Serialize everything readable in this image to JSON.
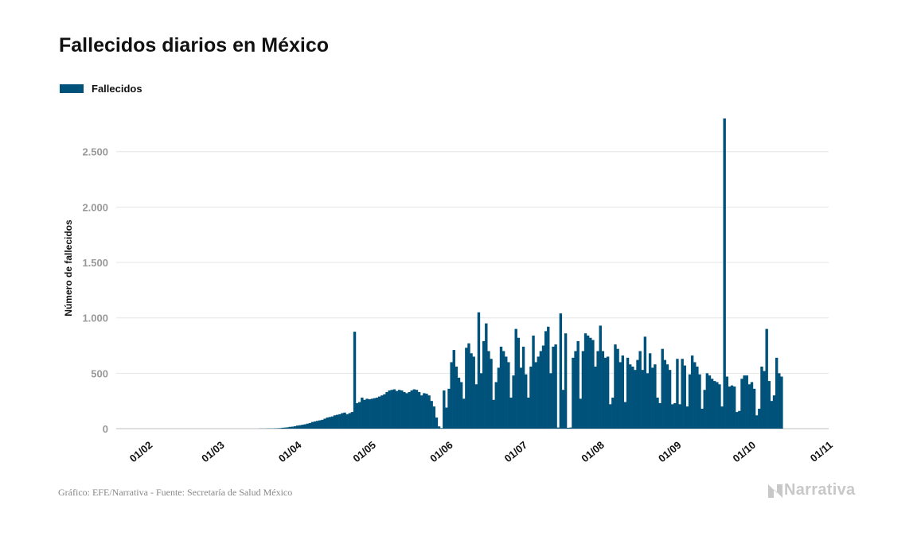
{
  "chart_data": {
    "type": "bar",
    "title": "Fallecidos diarios en México",
    "ylabel": "Número de fallecidos",
    "xlabel": "",
    "ylim": [
      0,
      2900
    ],
    "yticks": [
      0,
      500,
      1000,
      1500,
      2000,
      2500
    ],
    "ytick_labels": [
      "0",
      "500",
      "1.000",
      "1.500",
      "2.000",
      "2.500"
    ],
    "x_range": [
      "2020-01-20",
      "2020-11-02"
    ],
    "xticks": [
      "2020-02-01",
      "2020-03-01",
      "2020-04-01",
      "2020-05-01",
      "2020-06-01",
      "2020-07-01",
      "2020-08-01",
      "2020-09-01",
      "2020-10-01",
      "2020-11-01"
    ],
    "xtick_labels": [
      "01/02",
      "01/03",
      "01/04",
      "01/05",
      "01/06",
      "01/07",
      "01/08",
      "01/09",
      "01/10",
      "01/11"
    ],
    "grid": true,
    "legend_position": "top-left",
    "series": [
      {
        "name": "Fallecidos",
        "color": "#00527a",
        "start_date": "2020-03-18",
        "values": [
          1,
          1,
          1,
          2,
          2,
          2,
          3,
          4,
          5,
          8,
          10,
          12,
          16,
          18,
          22,
          28,
          31,
          35,
          39,
          45,
          50,
          60,
          65,
          70,
          75,
          80,
          90,
          100,
          105,
          110,
          120,
          125,
          130,
          140,
          145,
          130,
          140,
          150,
          875,
          230,
          240,
          280,
          260,
          270,
          265,
          270,
          275,
          280,
          290,
          300,
          310,
          330,
          345,
          350,
          355,
          340,
          350,
          345,
          330,
          320,
          330,
          345,
          355,
          350,
          330,
          300,
          320,
          315,
          300,
          250,
          200,
          100,
          20,
          5,
          345,
          190,
          360,
          600,
          710,
          560,
          460,
          420,
          270,
          730,
          770,
          680,
          650,
          400,
          1050,
          500,
          790,
          950,
          700,
          630,
          260,
          420,
          550,
          740,
          700,
          650,
          600,
          280,
          480,
          900,
          820,
          550,
          740,
          490,
          280,
          560,
          840,
          600,
          650,
          700,
          750,
          880,
          920,
          500,
          740,
          760,
          10,
          1040,
          350,
          860,
          8,
          10,
          640,
          700,
          790,
          270,
          700,
          860,
          840,
          820,
          800,
          560,
          700,
          930,
          700,
          640,
          650,
          220,
          280,
          760,
          720,
          600,
          660,
          240,
          640,
          580,
          560,
          530,
          620,
          700,
          530,
          830,
          500,
          680,
          550,
          580,
          280,
          230,
          720,
          620,
          580,
          530,
          220,
          230,
          630,
          220,
          630,
          570,
          200,
          490,
          660,
          600,
          560,
          490,
          180,
          350,
          500,
          480,
          450,
          430,
          420,
          400,
          200,
          2800,
          470,
          380,
          390,
          380,
          150,
          160,
          450,
          480,
          480,
          400,
          420,
          360,
          120,
          180,
          560,
          520,
          900,
          430,
          250,
          300,
          640,
          500,
          470
        ]
      }
    ]
  },
  "footer": {
    "credit": "Gráfico: EFE/Narrativa - Fuente: Secretaría de Salud México",
    "brand": "Narrativa"
  }
}
